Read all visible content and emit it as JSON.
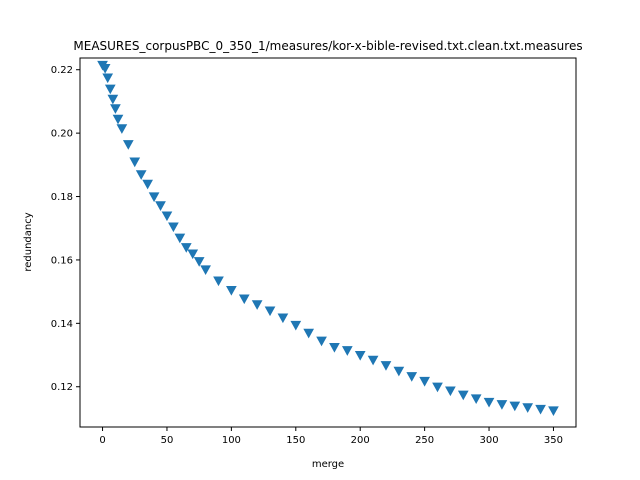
{
  "chart_data": {
    "type": "scatter",
    "title": "MEASURES_corpusPBC_0_350_1/measures/kor-x-bible-revised.txt.clean.txt.measures",
    "xlabel": "merge",
    "ylabel": "redundancy",
    "xlim": [
      -17.5,
      367.5
    ],
    "ylim": [
      0.1073,
      0.2237
    ],
    "xticks": [
      0,
      50,
      100,
      150,
      200,
      250,
      300,
      350
    ],
    "yticks": [
      0.12,
      0.14,
      0.16,
      0.18,
      0.2,
      0.22
    ],
    "ytick_labels": [
      "0.12",
      "0.14",
      "0.16",
      "0.18",
      "0.20",
      "0.22"
    ],
    "marker": "triangle-down",
    "color": "#1f77b4",
    "grid": false,
    "series": [
      {
        "x": [
          0,
          2,
          4,
          6,
          8,
          10,
          12,
          15,
          20,
          25,
          30,
          35,
          40,
          45,
          50,
          55,
          60,
          65,
          70,
          75,
          80,
          90,
          100,
          110,
          120,
          130,
          140,
          150,
          160,
          170,
          180,
          190,
          200,
          210,
          220,
          230,
          240,
          250,
          260,
          270,
          280,
          290,
          300,
          310,
          320,
          330,
          340,
          350
        ],
        "y": [
          0.2215,
          0.2205,
          0.2175,
          0.214,
          0.2108,
          0.2078,
          0.2045,
          0.2015,
          0.1965,
          0.191,
          0.187,
          0.184,
          0.18,
          0.1772,
          0.174,
          0.1705,
          0.167,
          0.164,
          0.162,
          0.1596,
          0.157,
          0.1535,
          0.1505,
          0.1478,
          0.146,
          0.144,
          0.1418,
          0.1395,
          0.137,
          0.1345,
          0.1325,
          0.1315,
          0.13,
          0.1285,
          0.1268,
          0.125,
          0.1233,
          0.1218,
          0.12,
          0.1188,
          0.1175,
          0.1163,
          0.1152,
          0.1145,
          0.114,
          0.1135,
          0.113,
          0.1125
        ]
      }
    ]
  }
}
